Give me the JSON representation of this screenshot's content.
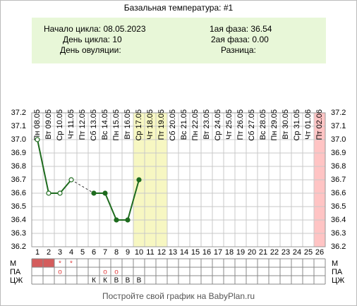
{
  "chart_data": {
    "type": "line",
    "title": "Базальная температура: #1",
    "info_left": [
      "Начало цикла: 08.05.2023",
      "День цикла: 10",
      "День овуляции:"
    ],
    "info_right": [
      "1ая фаза: 36.54",
      "2ая фаза: 0.00",
      "Разница:"
    ],
    "categories": [
      "Пн 08.05",
      "Вт 09.05",
      "Ср 10.05",
      "Чт 11.05",
      "Пт 12.05",
      "Сб 13.05",
      "Вс 14.05",
      "Пн 15.05",
      "Вт 16.05",
      "Ср 17.05",
      "Чт 18.05",
      "Пт 19.05",
      "Сб 20.05",
      "Вс 21.05",
      "Пн 22.05",
      "Вт 23.05",
      "Ср 24.05",
      "Чт 25.05",
      "Пт 26.05",
      "Сб 27.05",
      "Вс 28.05",
      "Пн 29.05",
      "Вт 30.05",
      "Ср 31.05",
      "Чт 01.06",
      "Пт 02.06"
    ],
    "days": [
      1,
      2,
      3,
      4,
      5,
      6,
      7,
      8,
      9,
      10,
      11,
      12,
      13,
      14,
      15,
      16,
      17,
      18,
      19,
      20,
      21,
      22,
      23,
      24,
      25,
      26
    ],
    "series": [
      {
        "color": "#1e6b1e",
        "values": [
          37.0,
          36.6,
          36.6,
          36.7,
          null,
          36.6,
          36.6,
          36.4,
          36.4,
          36.7,
          null,
          null,
          null,
          null,
          null,
          null,
          null,
          null,
          null,
          null,
          null,
          null,
          null,
          null,
          null,
          null
        ],
        "marker_style": [
          "open",
          "open",
          "open",
          "open",
          null,
          "filled",
          "filled",
          "filled",
          "filled",
          "filled",
          null,
          null,
          null,
          null,
          null,
          null,
          null,
          null,
          null,
          null,
          null,
          null,
          null,
          null,
          null,
          null
        ]
      }
    ],
    "ylim": [
      36.2,
      37.2
    ],
    "yticks": [
      36.2,
      36.3,
      36.4,
      36.5,
      36.6,
      36.7,
      36.8,
      36.9,
      {
        "value": 37.0,
        "label": "37.0"
      },
      37.1,
      37.2
    ],
    "grid": true,
    "highlights": [
      {
        "from": 10,
        "to": 12,
        "color": "#f7f7c2"
      },
      {
        "from": 26,
        "to": 26,
        "color": "#ffc4c4"
      }
    ],
    "rows": [
      {
        "label": "М",
        "text_color": "#e04040",
        "cells": [
          {
            "color": "#d45c5c"
          },
          {
            "color": "#d45c5c"
          },
          "*",
          "*",
          null,
          null,
          null,
          null,
          null,
          null,
          null,
          null,
          null,
          null,
          null,
          null,
          null,
          null,
          null,
          null,
          null,
          null,
          null,
          null,
          null,
          null
        ]
      },
      {
        "label": "ПА",
        "text_color": "#e04040",
        "cells": [
          null,
          null,
          "o",
          null,
          null,
          null,
          "o",
          "o",
          null,
          null,
          null,
          null,
          null,
          null,
          null,
          null,
          null,
          null,
          null,
          null,
          null,
          null,
          null,
          null,
          null,
          null
        ]
      },
      {
        "label": "ЦЖ",
        "text_color": "#000000",
        "cells": [
          null,
          null,
          null,
          null,
          null,
          "К",
          "К",
          "В",
          "В",
          "В",
          null,
          null,
          null,
          null,
          null,
          null,
          null,
          null,
          null,
          null,
          null,
          null,
          null,
          null,
          null,
          null
        ]
      }
    ],
    "footer": "Постройте свой график на BabyPlan.ru"
  }
}
